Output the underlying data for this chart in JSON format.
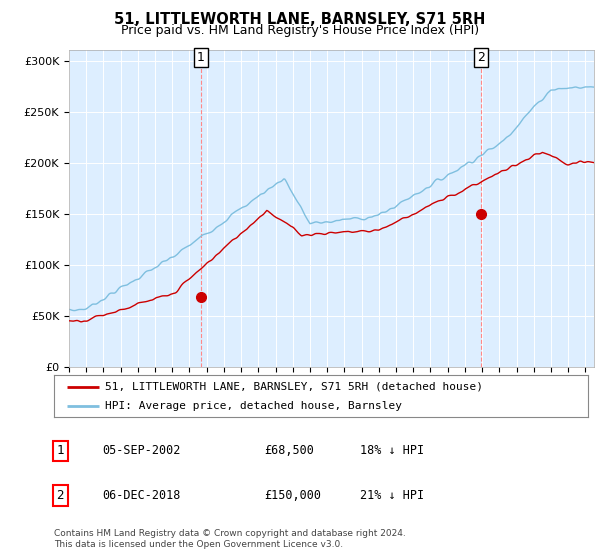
{
  "title": "51, LITTLEWORTH LANE, BARNSLEY, S71 5RH",
  "subtitle": "Price paid vs. HM Land Registry's House Price Index (HPI)",
  "hpi_color": "#7fbfdf",
  "price_color": "#cc0000",
  "marker_color": "#cc0000",
  "background_color": "#ffffff",
  "plot_bg_color": "#ddeeff",
  "grid_color": "#ffffff",
  "ylim": [
    0,
    310000
  ],
  "yticks": [
    0,
    50000,
    100000,
    150000,
    200000,
    250000,
    300000
  ],
  "ytick_labels": [
    "£0",
    "£50K",
    "£100K",
    "£150K",
    "£200K",
    "£250K",
    "£300K"
  ],
  "sale1_year": 2002.67,
  "sale1_price": 68500,
  "sale2_year": 2018.92,
  "sale2_price": 150000,
  "legend_label1": "51, LITTLEWORTH LANE, BARNSLEY, S71 5RH (detached house)",
  "legend_label2": "HPI: Average price, detached house, Barnsley",
  "annotation1_label": "1",
  "annotation2_label": "2",
  "table_row1": [
    "1",
    "05-SEP-2002",
    "£68,500",
    "18% ↓ HPI"
  ],
  "table_row2": [
    "2",
    "06-DEC-2018",
    "£150,000",
    "21% ↓ HPI"
  ],
  "footer": "Contains HM Land Registry data © Crown copyright and database right 2024.\nThis data is licensed under the Open Government Licence v3.0.",
  "xmin": 1995,
  "xmax": 2025.5
}
